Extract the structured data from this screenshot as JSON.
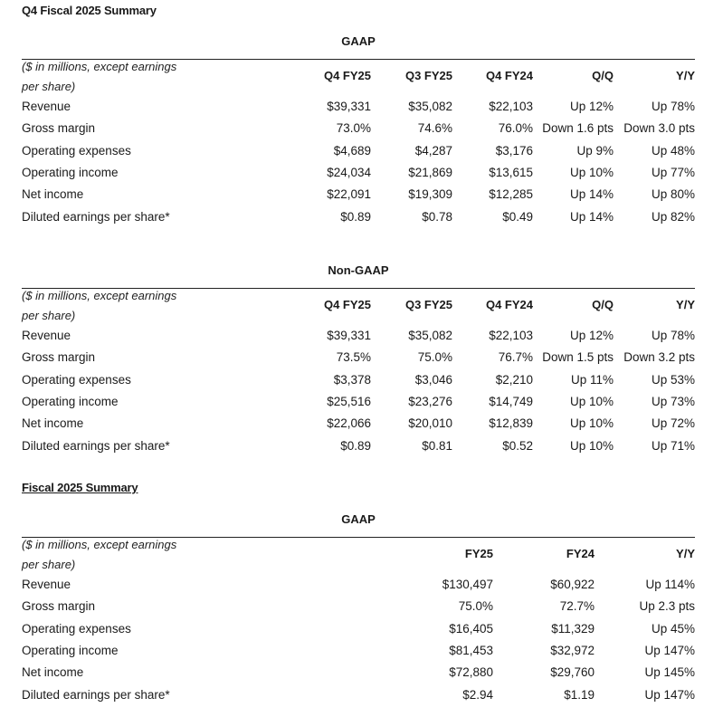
{
  "q4": {
    "title": "Q4 Fiscal 2025 Summary",
    "gaap": {
      "caption": "GAAP",
      "unit_line1": "($ in millions, except earnings",
      "unit_line2": "per share)",
      "columns": [
        "Q4 FY25",
        "Q3 FY25",
        "Q4 FY24",
        "Q/Q",
        "Y/Y"
      ],
      "rows": [
        {
          "label": "Revenue",
          "values": [
            "$39,331",
            "$35,082",
            "$22,103",
            "Up 12%",
            "Up 78%"
          ]
        },
        {
          "label": "Gross margin",
          "values": [
            "73.0%",
            "74.6%",
            "76.0%",
            "Down 1.6 pts",
            "Down 3.0 pts"
          ]
        },
        {
          "label": "Operating expenses",
          "values": [
            "$4,689",
            "$4,287",
            "$3,176",
            "Up 9%",
            "Up 48%"
          ]
        },
        {
          "label": "Operating income",
          "values": [
            "$24,034",
            "$21,869",
            "$13,615",
            "Up 10%",
            "Up 77%"
          ]
        },
        {
          "label": "Net income",
          "values": [
            "$22,091",
            "$19,309",
            "$12,285",
            "Up 14%",
            "Up 80%"
          ]
        },
        {
          "label": "Diluted earnings per share*",
          "values": [
            "$0.89",
            "$0.78",
            "$0.49",
            "Up 14%",
            "Up 82%"
          ]
        }
      ]
    },
    "nongaap": {
      "caption": "Non-GAAP",
      "unit_line1": "($ in millions, except earnings",
      "unit_line2": "per share)",
      "columns": [
        "Q4 FY25",
        "Q3 FY25",
        "Q4 FY24",
        "Q/Q",
        "Y/Y"
      ],
      "rows": [
        {
          "label": "Revenue",
          "values": [
            "$39,331",
            "$35,082",
            "$22,103",
            "Up 12%",
            "Up 78%"
          ]
        },
        {
          "label": "Gross margin",
          "values": [
            "73.5%",
            "75.0%",
            "76.7%",
            "Down 1.5 pts",
            "Down 3.2 pts"
          ]
        },
        {
          "label": "Operating expenses",
          "values": [
            "$3,378",
            "$3,046",
            "$2,210",
            "Up 11%",
            "Up 53%"
          ]
        },
        {
          "label": "Operating income",
          "values": [
            "$25,516",
            "$23,276",
            "$14,749",
            "Up 10%",
            "Up 73%"
          ]
        },
        {
          "label": "Net income",
          "values": [
            "$22,066",
            "$20,010",
            "$12,839",
            "Up 10%",
            "Up 72%"
          ]
        },
        {
          "label": "Diluted earnings per share*",
          "values": [
            "$0.89",
            "$0.81",
            "$0.52",
            "Up 10%",
            "Up 71%"
          ]
        }
      ]
    }
  },
  "fy": {
    "title": "Fiscal 2025 Summary",
    "gaap": {
      "caption": "GAAP",
      "unit_line1": "($ in millions, except earnings",
      "unit_line2": "per share)",
      "columns": [
        "FY25",
        "FY24",
        "Y/Y"
      ],
      "rows": [
        {
          "label": "Revenue",
          "values": [
            "$130,497",
            "$60,922",
            "Up 114%"
          ]
        },
        {
          "label": "Gross margin",
          "values": [
            "75.0%",
            "72.7%",
            "Up 2.3 pts"
          ]
        },
        {
          "label": "Operating expenses",
          "values": [
            "$16,405",
            "$11,329",
            "Up 45%"
          ]
        },
        {
          "label": "Operating income",
          "values": [
            "$81,453",
            "$32,972",
            "Up 147%"
          ]
        },
        {
          "label": "Net income",
          "values": [
            "$72,880",
            "$29,760",
            "Up 145%"
          ]
        },
        {
          "label": "Diluted earnings per share*",
          "values": [
            "$2.94",
            "$1.19",
            "Up 147%"
          ]
        }
      ]
    }
  }
}
